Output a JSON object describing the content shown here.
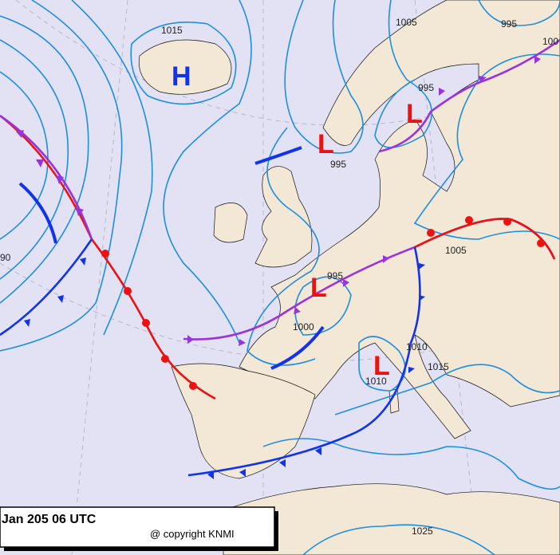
{
  "header": {
    "timestamp": "Jan 205 06 UTC",
    "copyright": "@ copyright KNMI"
  },
  "pressure_centers": [
    {
      "label": "H"
    },
    {
      "label": "L"
    },
    {
      "label": "L"
    },
    {
      "label": "L"
    },
    {
      "label": "L"
    }
  ],
  "isobar_labels": [
    "1015",
    "1005",
    "995",
    "100",
    "995",
    "995",
    "90",
    "995",
    "1005",
    "1000",
    "1010",
    "1015",
    "1010",
    "1025"
  ]
}
